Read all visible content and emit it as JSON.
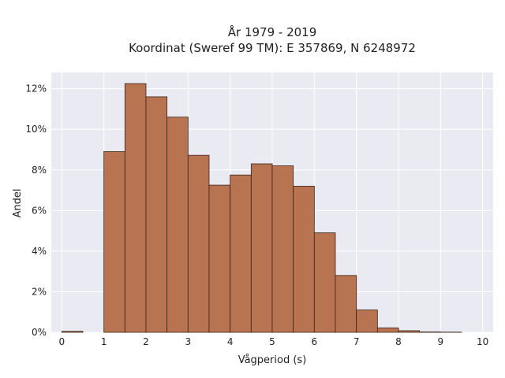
{
  "chart_data": {
    "type": "bar",
    "title": "År 1979 - 2019",
    "subtitle": "Koordinat (Sweref 99 TM): E 357869, N 6248972",
    "xlabel": "Vågperiod (s)",
    "ylabel": "Andel",
    "bin_edges": [
      0,
      0.5,
      1,
      1.5,
      2,
      2.5,
      3,
      3.5,
      4,
      4.5,
      5,
      5.5,
      6,
      6.5,
      7,
      7.5,
      8,
      8.5,
      9,
      9.5,
      10
    ],
    "values": [
      0.05,
      0,
      8.9,
      12.25,
      11.6,
      10.6,
      8.72,
      7.25,
      7.75,
      8.3,
      8.2,
      7.2,
      4.9,
      2.8,
      1.1,
      0.22,
      0.08,
      0.02,
      0.01,
      0
    ],
    "xlim": [
      -0.25,
      10.25
    ],
    "ylim": [
      0,
      12.8
    ],
    "xticks": [
      0,
      1,
      2,
      3,
      4,
      5,
      6,
      7,
      8,
      9,
      10
    ],
    "xtick_labels": [
      "0",
      "1",
      "2",
      "3",
      "4",
      "5",
      "6",
      "7",
      "8",
      "9",
      "10"
    ],
    "yticks": [
      0,
      2,
      4,
      6,
      8,
      10,
      12
    ],
    "ytick_labels": [
      "0%",
      "2%",
      "4%",
      "6%",
      "8%",
      "10%",
      "12%"
    ],
    "grid": true,
    "bar_color": "#b87350",
    "bar_edge_color": "#3b2418",
    "plot_background": "#eaeaf2"
  }
}
